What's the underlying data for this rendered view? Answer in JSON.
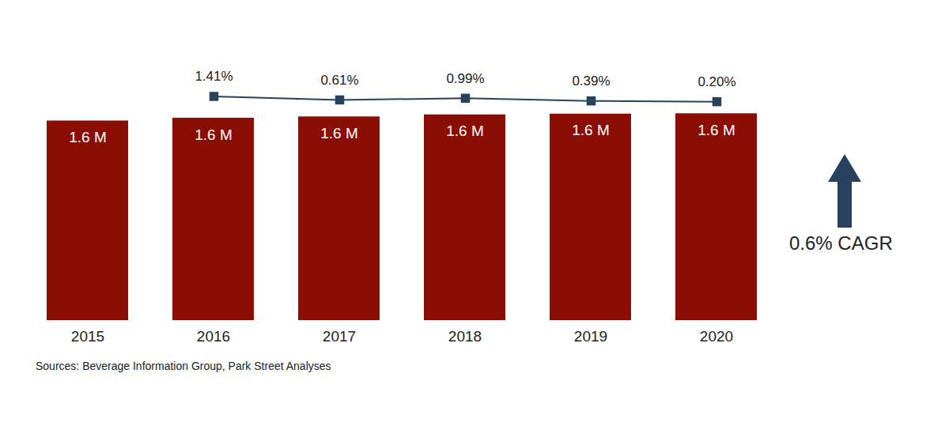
{
  "chart_data": {
    "type": "bar",
    "categories": [
      "2015",
      "2016",
      "2017",
      "2018",
      "2019",
      "2020"
    ],
    "series": [
      {
        "type": "bar",
        "color": "#8b0e04",
        "values": [
          1.57,
          1.592,
          1.602,
          1.618,
          1.624,
          1.627
        ],
        "value_labels": [
          "1.6 M",
          "1.6 M",
          "1.6 M",
          "1.6 M",
          "1.6 M",
          "1.6 M"
        ]
      },
      {
        "type": "line",
        "axis": "y2",
        "color": "#27425e",
        "marker": "square",
        "values": [
          null,
          1.41,
          0.61,
          0.99,
          0.39,
          0.2
        ],
        "value_labels": [
          null,
          "1.41%",
          "0.61%",
          "0.99%",
          "0.39%",
          "0.20%"
        ]
      }
    ],
    "ylim": [
      0,
      2.4
    ],
    "y2lim": [
      -50,
      20
    ],
    "data_labels": true,
    "tick_labels": "x",
    "grid": false,
    "annotation": "0.6% CAGR",
    "caption": "Sources: Beverage Information Group, Park Street Analyses"
  }
}
